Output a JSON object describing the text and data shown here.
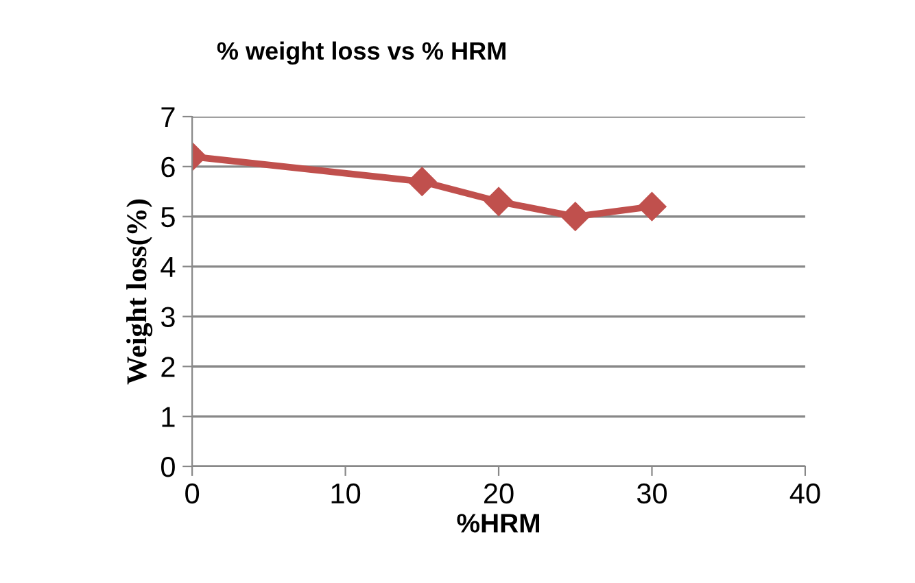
{
  "chart_data": {
    "type": "line",
    "title": "% weight loss vs % HRM",
    "xlabel": "%HRM",
    "ylabel": "Weight loss(%)",
    "x": [
      0,
      15,
      20,
      25,
      30
    ],
    "series": [
      {
        "color": "#c0504d",
        "values": [
          6.2,
          5.7,
          5.3,
          5.0,
          5.2
        ]
      }
    ],
    "xlim": [
      0,
      40
    ],
    "xticks": [
      0,
      10,
      20,
      30,
      40
    ],
    "ylim": [
      0,
      7
    ],
    "yticks": [
      0,
      1,
      2,
      3,
      4,
      5,
      6,
      7
    ],
    "grid": "y",
    "legend": false,
    "marker": "diamond",
    "line_style": "solid"
  }
}
